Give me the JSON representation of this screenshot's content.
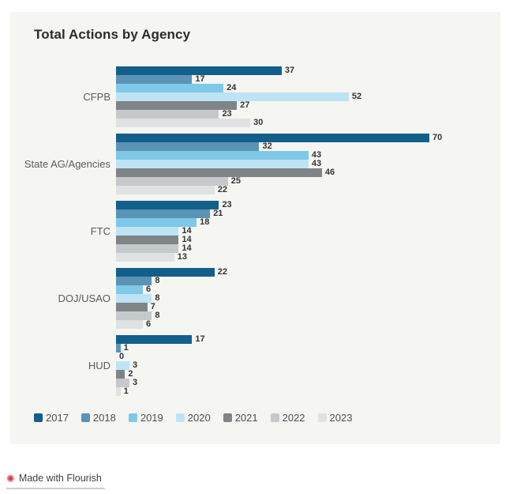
{
  "title": "Total Actions by Agency",
  "chart_data": {
    "type": "bar",
    "orientation": "horizontal",
    "title": "Total Actions by Agency",
    "categories": [
      "CFPB",
      "State AG/Agencies",
      "FTC",
      "DOJ/USAO",
      "HUD"
    ],
    "series": [
      {
        "name": "2017",
        "color": "#135F8C",
        "values": [
          37,
          70,
          23,
          22,
          17
        ]
      },
      {
        "name": "2018",
        "color": "#5B93B5",
        "values": [
          17,
          32,
          21,
          8,
          1
        ]
      },
      {
        "name": "2019",
        "color": "#7EC9E7",
        "values": [
          24,
          43,
          18,
          6,
          0
        ]
      },
      {
        "name": "2020",
        "color": "#BEE3F4",
        "values": [
          52,
          43,
          14,
          8,
          3
        ]
      },
      {
        "name": "2021",
        "color": "#7F8487",
        "values": [
          27,
          46,
          14,
          7,
          2
        ]
      },
      {
        "name": "2022",
        "color": "#C6C9CB",
        "values": [
          23,
          25,
          14,
          8,
          3
        ]
      },
      {
        "name": "2023",
        "color": "#DFE1E2",
        "values": [
          30,
          22,
          13,
          6,
          1
        ]
      }
    ],
    "xmax": 70,
    "value_labels": true,
    "grid": false,
    "legend_position": "bottom",
    "panel_background": "#f5f5f2"
  },
  "footer": {
    "badge_label": "Made with Flourish",
    "badge_icon": "starburst",
    "badge_icon_color": "#E0393E"
  }
}
